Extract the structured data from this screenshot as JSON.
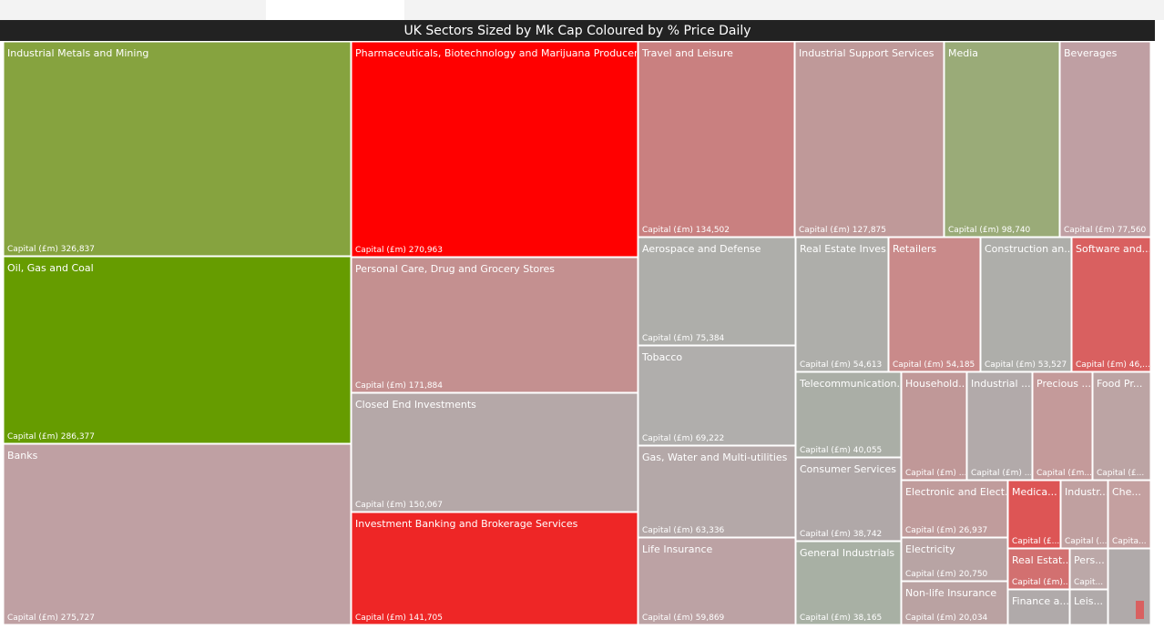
{
  "chart_data": {
    "type": "treemap",
    "title": "UK Sectors Sized by Mk Cap Coloured by % Price Daily",
    "categories": [
      "Industrial Metals and Mining",
      "Oil, Gas and Coal",
      "Banks",
      "Pharmaceuticals, Biotechnology and Marijuana Producers",
      "Personal Care, Drug and Grocery Stores",
      "Closed End Investments",
      "Investment Banking and Brokerage Services",
      "Travel and Leisure",
      "Industrial Support Services",
      "Media",
      "Beverages",
      "Aerospace and Defense",
      "Tobacco",
      "Gas, Water and Multi-utilities",
      "Life Insurance",
      "Real Estate Inves...",
      "Retailers",
      "Construction an...",
      "Software and...",
      "Telecommunication...",
      "Consumer Services",
      "General Industrials",
      "Household...",
      "Industrial ...",
      "Precious ...",
      "Food Pr...",
      "Electronic and Elect...",
      "Electricity",
      "Non-life Insurance",
      "Medica...",
      "Industr...",
      "Che...",
      "Real Estat...",
      "Pers...",
      "Finance a...",
      "Leis..."
    ],
    "values": [
      326837,
      286377,
      275727,
      270963,
      171884,
      150067,
      141705,
      134502,
      127875,
      98740,
      77560,
      75384,
      69222,
      63336,
      59869,
      54613,
      54185,
      53527,
      46000,
      40055,
      38742,
      38165,
      32000,
      31000,
      29000,
      27500,
      26937,
      20750,
      20034,
      17000,
      15000,
      13000,
      12000,
      8000,
      10000,
      7000
    ],
    "value_labels": [
      "Capital (£m) 326,837",
      "Capital (£m) 286,377",
      "Capital (£m) 275,727",
      "Capital (£m) 270,963",
      "Capital (£m) 171,884",
      "Capital (£m) 150,067",
      "Capital (£m) 141,705",
      "Capital (£m) 134,502",
      "Capital (£m) 127,875",
      "Capital (£m) 98,740",
      "Capital (£m) 77,560",
      "Capital (£m) 75,384",
      "Capital (£m) 69,222",
      "Capital (£m) 63,336",
      "Capital (£m) 59,869",
      "Capital (£m) 54,613",
      "Capital (£m) 54,185",
      "Capital (£m) 53,527",
      "Capital (£m) 46,...",
      "Capital (£m) 40,055",
      "Capital (£m) 38,742",
      "Capital (£m) 38,165",
      "Capital (£m) ...",
      "Capital (£m) ...",
      "Capital (£m...",
      "Capital (£...",
      "Capital (£m) 26,937",
      "Capital (£m) 20,750",
      "Capital (£m) 20,034",
      "Capital (£...",
      "Capital (...",
      "Capita...",
      "Capital (£m)...",
      "Capit...",
      null,
      null
    ],
    "colors": [
      "#86a33f",
      "#669c00",
      "#bfa0a3",
      "#ff0000",
      "#c49090",
      "#b5a8a8",
      "#ee2626",
      "#c98080",
      "#bf9999",
      "#9aab78",
      "#bf9fa3",
      "#aeaeaa",
      "#b0aeac",
      "#b4a8a8",
      "#bca2a4",
      "#aeaeaa",
      "#c98a8a",
      "#aeaeaa",
      "#d96060",
      "#aaaea6",
      "#b0a8a8",
      "#a8b0a4",
      "#c09898",
      "#b2aaaa",
      "#c49a9a",
      "#bca4a4",
      "#c09c9c",
      "#b8a4a4",
      "#baa2a2",
      "#dd5555",
      "#c0a0a0",
      "#c4a0a0",
      "#d27070",
      "#bca8a8",
      "#b0aaaa",
      "#b0aaaa"
    ]
  }
}
